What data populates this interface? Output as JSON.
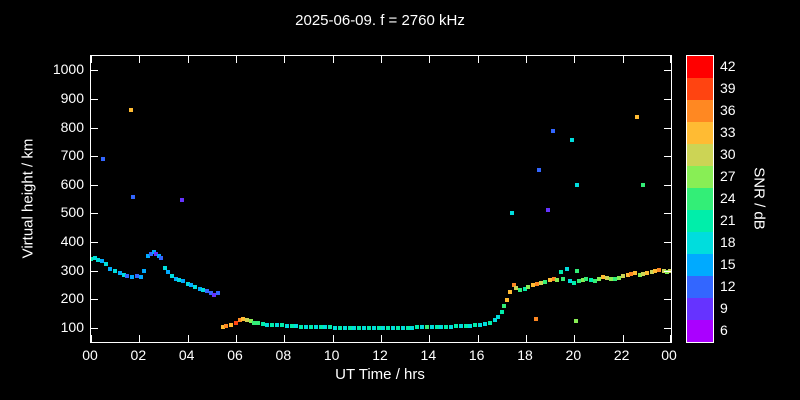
{
  "title": "2025-06-09. f = 2760 kHz",
  "axes": {
    "xlabel": "UT Time / hrs",
    "ylabel": "Virtual height / km",
    "cblabel": "SNR / dB"
  },
  "colorbar": {
    "levels": [
      6,
      9,
      12,
      15,
      18,
      21,
      24,
      27,
      30,
      33,
      36,
      39,
      42
    ],
    "colors": [
      "#aa00ff",
      "#6633ff",
      "#3366ff",
      "#00aaff",
      "#00dddd",
      "#00eeaa",
      "#33ee77",
      "#88ee55",
      "#ccd455",
      "#ffbb33",
      "#ff8822",
      "#ff4411",
      "#ff0000"
    ],
    "labels": [
      "42",
      "39",
      "36",
      "33",
      "30",
      "27",
      "24",
      "21",
      "18",
      "15",
      "12",
      "9",
      "6"
    ]
  },
  "chart_data": {
    "type": "scatter",
    "title": "2025-06-09. f = 2760 kHz",
    "xlabel": "UT Time / hrs",
    "ylabel": "Virtual height / km",
    "colorbar_label": "SNR / dB",
    "xlim": [
      0,
      24
    ],
    "ylim": [
      50,
      1050
    ],
    "x_ticks": [
      0,
      2,
      4,
      6,
      8,
      10,
      12,
      14,
      16,
      18,
      20,
      22,
      24
    ],
    "x_tick_labels": [
      "00",
      "02",
      "04",
      "06",
      "08",
      "10",
      "12",
      "14",
      "16",
      "18",
      "20",
      "22",
      "00"
    ],
    "y_ticks": [
      100,
      200,
      300,
      400,
      500,
      600,
      700,
      800,
      900,
      1000
    ],
    "y_tick_labels": [
      "100",
      "200",
      "300",
      "400",
      "500",
      "600",
      "700",
      "800",
      "900",
      "1000"
    ],
    "point_format": "[UT_hours, virtual_height_km, SNR_dB]",
    "points": [
      [
        0.0,
        340,
        21
      ],
      [
        0.15,
        344,
        18
      ],
      [
        0.3,
        338,
        18
      ],
      [
        0.45,
        332,
        15
      ],
      [
        0.6,
        322,
        18
      ],
      [
        0.8,
        305,
        15
      ],
      [
        1.0,
        298,
        18
      ],
      [
        1.2,
        290,
        15
      ],
      [
        1.35,
        284,
        18
      ],
      [
        1.5,
        280,
        12
      ],
      [
        1.7,
        278,
        15
      ],
      [
        1.9,
        282,
        12
      ],
      [
        2.05,
        278,
        15
      ],
      [
        2.2,
        300,
        15
      ],
      [
        2.35,
        350,
        15
      ],
      [
        2.5,
        358,
        12
      ],
      [
        2.6,
        364,
        15
      ],
      [
        2.7,
        356,
        9
      ],
      [
        2.8,
        350,
        15
      ],
      [
        2.9,
        345,
        12
      ],
      [
        3.05,
        310,
        18
      ],
      [
        3.2,
        296,
        15
      ],
      [
        3.35,
        282,
        18
      ],
      [
        3.5,
        272,
        15
      ],
      [
        3.65,
        268,
        18
      ],
      [
        3.8,
        262,
        15
      ],
      [
        4.0,
        254,
        18
      ],
      [
        4.15,
        248,
        15
      ],
      [
        4.3,
        242,
        18
      ],
      [
        4.5,
        236,
        15
      ],
      [
        4.65,
        232,
        18
      ],
      [
        4.8,
        228,
        12
      ],
      [
        4.95,
        222,
        12
      ],
      [
        5.1,
        216,
        9
      ],
      [
        5.25,
        220,
        12
      ],
      [
        5.45,
        104,
        33
      ],
      [
        5.6,
        107,
        36
      ],
      [
        5.8,
        110,
        33
      ],
      [
        6.0,
        116,
        39
      ],
      [
        6.15,
        126,
        36
      ],
      [
        6.3,
        131,
        33
      ],
      [
        6.45,
        128,
        30
      ],
      [
        6.6,
        123,
        27
      ],
      [
        6.75,
        118,
        24
      ],
      [
        6.9,
        115,
        24
      ],
      [
        7.1,
        112,
        21
      ],
      [
        7.3,
        110,
        18
      ],
      [
        7.5,
        110,
        21
      ],
      [
        7.7,
        108,
        18
      ],
      [
        7.9,
        108,
        21
      ],
      [
        8.1,
        106,
        18
      ],
      [
        8.3,
        106,
        21
      ],
      [
        8.5,
        105,
        18
      ],
      [
        8.7,
        104,
        21
      ],
      [
        8.9,
        104,
        18
      ],
      [
        9.1,
        103,
        21
      ],
      [
        9.3,
        102,
        18
      ],
      [
        9.5,
        102,
        21
      ],
      [
        9.7,
        101,
        18
      ],
      [
        9.9,
        101,
        21
      ],
      [
        10.1,
        100,
        18
      ],
      [
        10.3,
        100,
        21
      ],
      [
        10.5,
        100,
        18
      ],
      [
        10.7,
        100,
        21
      ],
      [
        10.9,
        99,
        18
      ],
      [
        11.1,
        99,
        21
      ],
      [
        11.3,
        99,
        18
      ],
      [
        11.5,
        98,
        21
      ],
      [
        11.7,
        98,
        18
      ],
      [
        11.9,
        98,
        21
      ],
      [
        12.1,
        98,
        18
      ],
      [
        12.3,
        98,
        21
      ],
      [
        12.5,
        99,
        18
      ],
      [
        12.7,
        99,
        21
      ],
      [
        12.9,
        100,
        18
      ],
      [
        13.1,
        100,
        21
      ],
      [
        13.3,
        100,
        18
      ],
      [
        13.5,
        101,
        21
      ],
      [
        13.7,
        101,
        18
      ],
      [
        13.9,
        102,
        24
      ],
      [
        14.1,
        102,
        18
      ],
      [
        14.3,
        103,
        21
      ],
      [
        14.5,
        103,
        18
      ],
      [
        14.7,
        104,
        21
      ],
      [
        14.9,
        104,
        18
      ],
      [
        15.1,
        105,
        21
      ],
      [
        15.3,
        105,
        18
      ],
      [
        15.5,
        106,
        21
      ],
      [
        15.7,
        107,
        18
      ],
      [
        15.9,
        108,
        21
      ],
      [
        16.1,
        110,
        18
      ],
      [
        16.3,
        113,
        18
      ],
      [
        16.5,
        118,
        21
      ],
      [
        16.7,
        126,
        18
      ],
      [
        16.85,
        138,
        18
      ],
      [
        17.0,
        155,
        21
      ],
      [
        17.1,
        176,
        24
      ],
      [
        17.2,
        196,
        33
      ],
      [
        17.35,
        224,
        33
      ],
      [
        17.5,
        248,
        36
      ],
      [
        17.6,
        240,
        30
      ],
      [
        17.75,
        232,
        24
      ],
      [
        17.95,
        236,
        21
      ],
      [
        18.1,
        242,
        27
      ],
      [
        18.3,
        248,
        33
      ],
      [
        18.45,
        252,
        36
      ],
      [
        18.6,
        257,
        30
      ],
      [
        18.8,
        261,
        24
      ],
      [
        19.0,
        268,
        33
      ],
      [
        19.15,
        272,
        36
      ],
      [
        19.3,
        268,
        27
      ],
      [
        19.45,
        296,
        21
      ],
      [
        19.55,
        272,
        24
      ],
      [
        19.7,
        305,
        18
      ],
      [
        19.8,
        263,
        18
      ],
      [
        20.0,
        258,
        21
      ],
      [
        20.1,
        300,
        24
      ],
      [
        20.2,
        262,
        24
      ],
      [
        20.35,
        268,
        27
      ],
      [
        20.5,
        272,
        24
      ],
      [
        20.7,
        266,
        21
      ],
      [
        20.85,
        262,
        24
      ],
      [
        21.0,
        270,
        27
      ],
      [
        21.2,
        278,
        33
      ],
      [
        21.35,
        274,
        30
      ],
      [
        21.5,
        272,
        27
      ],
      [
        21.7,
        270,
        24
      ],
      [
        21.85,
        275,
        27
      ],
      [
        22.0,
        280,
        30
      ],
      [
        22.2,
        285,
        33
      ],
      [
        22.35,
        288,
        36
      ],
      [
        22.5,
        292,
        33
      ],
      [
        22.7,
        286,
        27
      ],
      [
        22.85,
        288,
        30
      ],
      [
        23.0,
        292,
        33
      ],
      [
        23.2,
        296,
        30
      ],
      [
        23.35,
        298,
        33
      ],
      [
        23.5,
        302,
        36
      ],
      [
        23.7,
        298,
        30
      ],
      [
        23.85,
        296,
        27
      ],
      [
        23.95,
        300,
        30
      ],
      [
        0.5,
        690,
        12
      ],
      [
        1.65,
        860,
        33
      ],
      [
        1.72,
        558,
        12
      ],
      [
        3.75,
        548,
        9
      ],
      [
        17.4,
        502,
        18
      ],
      [
        18.55,
        652,
        12
      ],
      [
        18.9,
        512,
        9
      ],
      [
        19.1,
        788,
        12
      ],
      [
        19.9,
        755,
        18
      ],
      [
        20.1,
        600,
        18
      ],
      [
        22.6,
        838,
        33
      ],
      [
        22.85,
        598,
        24
      ],
      [
        18.4,
        132,
        36
      ],
      [
        20.05,
        122,
        27
      ]
    ]
  }
}
